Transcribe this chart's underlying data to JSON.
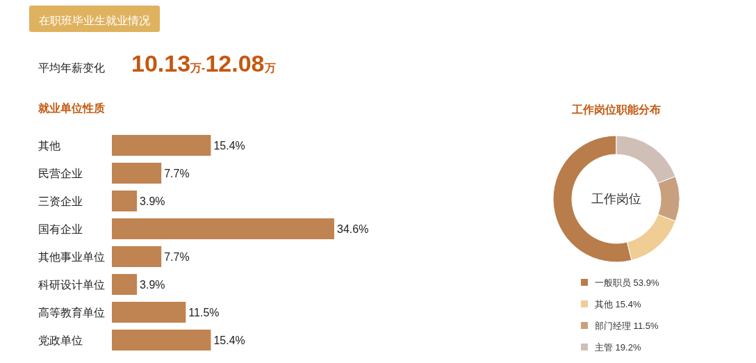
{
  "chart_data": [
    {
      "type": "other",
      "title": "在职班毕业生就业情况",
      "annotations": [
        "平均年薪变化",
        "10.13万-12.08万"
      ]
    },
    {
      "type": "bar",
      "title": "就业单位性质",
      "orientation": "horizontal",
      "color": "#c08352",
      "categories": [
        "其他",
        "民营企业",
        "三资企业",
        "国有企业",
        "其他事业单位",
        "科研设计单位",
        "高等教育单位",
        "党政单位"
      ],
      "values": [
        15.4,
        7.7,
        3.9,
        34.6,
        7.7,
        3.9,
        11.5,
        15.4
      ],
      "value_labels": [
        "15.4%",
        "7.7%",
        "3.9%",
        "34.6%",
        "7.7%",
        "3.9%",
        "11.5%",
        "15.4%"
      ]
    },
    {
      "type": "donut",
      "title": "工作岗位职能分布",
      "annotations": [
        "工作岗位"
      ],
      "legend": "bottom",
      "categories": [
        "一般职员",
        "其他",
        "部门经理",
        "主管"
      ],
      "values": [
        53.9,
        15.4,
        11.5,
        19.2
      ],
      "colors": [
        "#b97c4b",
        "#f0cd94",
        "#c9a07e",
        "#d0bfb6"
      ],
      "value_labels": [
        "53.9%",
        "15.4%",
        "11.5%",
        "19.2%"
      ]
    }
  ]
}
